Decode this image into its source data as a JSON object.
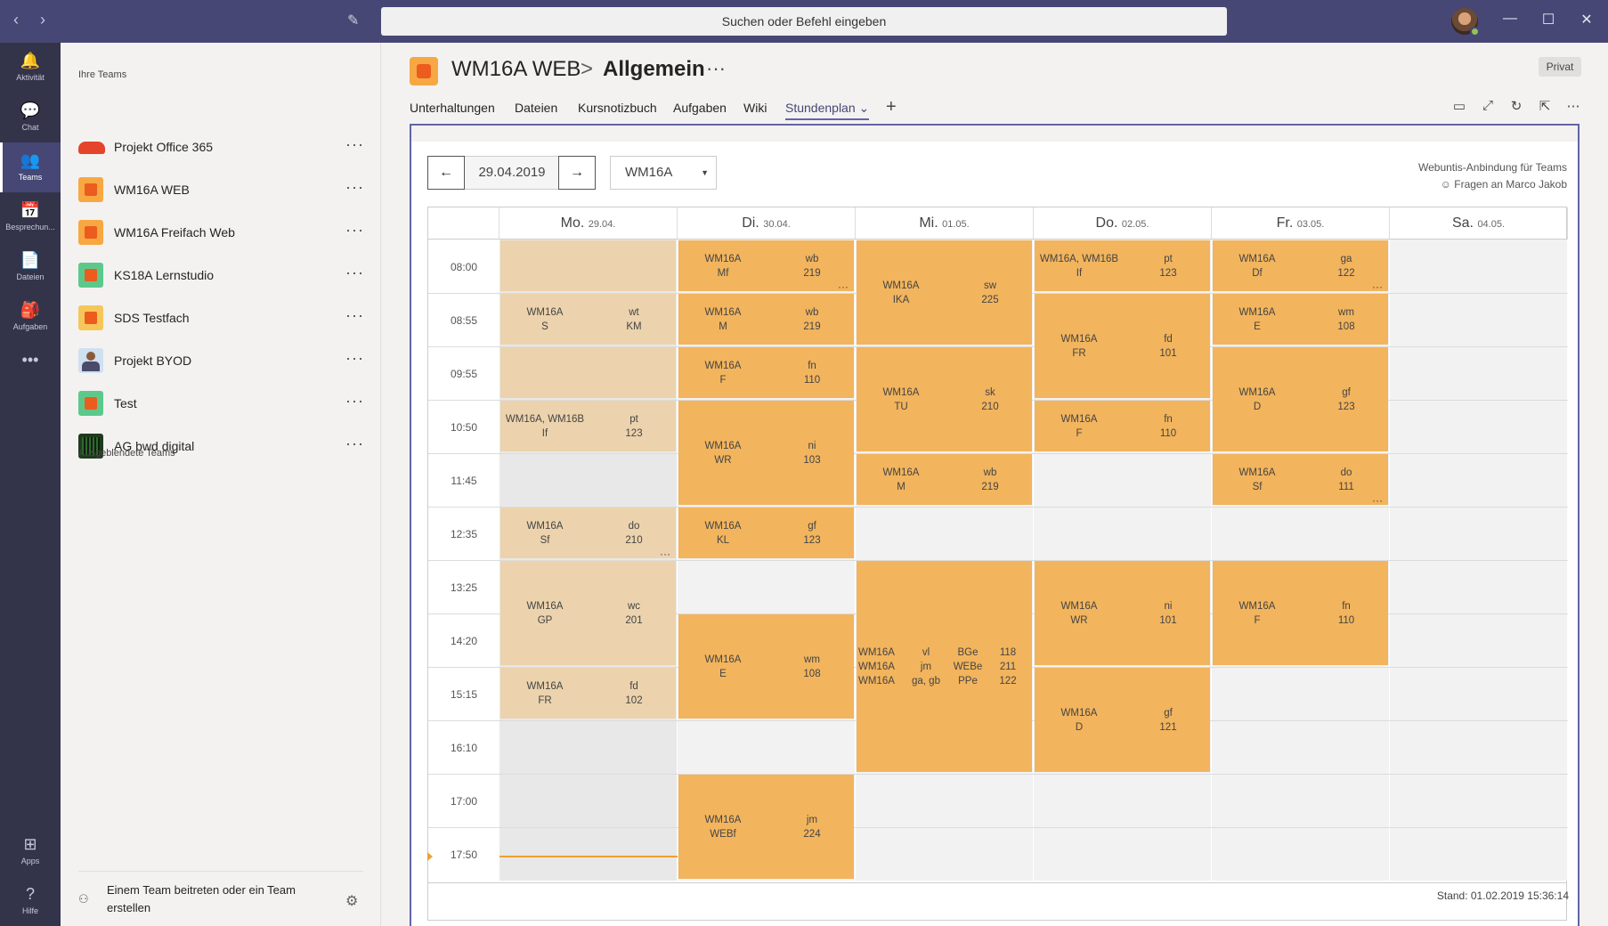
{
  "titlebar": {
    "search_placeholder": "Suchen oder Befehl eingeben",
    "back": "‹",
    "forward": "›",
    "compose": "✎",
    "minimize": "—",
    "maximize": "☐",
    "close": "✕"
  },
  "rail": [
    {
      "label": "Aktivität",
      "icon": "🔔",
      "name": "rail-activity"
    },
    {
      "label": "Chat",
      "icon": "💬",
      "name": "rail-chat"
    },
    {
      "label": "Teams",
      "icon": "👥",
      "name": "rail-teams"
    },
    {
      "label": "Besprechun...",
      "icon": "📅",
      "name": "rail-meetings"
    },
    {
      "label": "Dateien",
      "icon": "📄",
      "name": "rail-files"
    },
    {
      "label": "Aufgaben",
      "icon": "🎒",
      "name": "rail-assignments"
    },
    {
      "label": "",
      "icon": "•••",
      "name": "rail-more"
    }
  ],
  "rail_bottom": [
    {
      "label": "Apps",
      "icon": "⊞",
      "name": "rail-apps"
    },
    {
      "label": "Hilfe",
      "icon": "?",
      "name": "rail-help"
    }
  ],
  "teams_panel": {
    "your_teams": "Ihre Teams",
    "hidden_teams": "Ausgeblendete Teams",
    "join": "Einem Team beitreten oder ein Team erstellen",
    "teams": [
      {
        "name": "Projekt Office 365",
        "icon_style": "office"
      },
      {
        "name": "WM16A WEB",
        "icon_style": "orange"
      },
      {
        "name": "WM16A Freifach Web",
        "icon_style": "orange"
      },
      {
        "name": "KS18A Lernstudio",
        "icon_style": "green"
      },
      {
        "name": "SDS Testfach",
        "icon_style": "yellow"
      },
      {
        "name": "Projekt BYOD",
        "icon_style": "person"
      },
      {
        "name": "Test",
        "icon_style": "green"
      },
      {
        "name": "AG bwd digital",
        "icon_style": "dark"
      }
    ]
  },
  "channel": {
    "team": "WM16A WEB",
    "separator": ">",
    "channel": "Allgemein",
    "more": "···",
    "privacy": "Privat",
    "tabs": [
      "Unterhaltungen",
      "Dateien",
      "Kursnotizbuch",
      "Aufgaben",
      "Wiki",
      "Stundenplan ⌄"
    ],
    "add_tab": "+"
  },
  "timetable": {
    "date": "29.04.2019",
    "prev": "←",
    "next": "→",
    "class": "WM16A",
    "webuntis_line1": "Webuntis-Anbindung für Teams",
    "webuntis_line2": "☺ Fragen an Marco Jakob",
    "stand": "Stand: 01.02.2019 15:36:14",
    "days": [
      {
        "name": "Mo.",
        "date": "29.04."
      },
      {
        "name": "Di.",
        "date": "30.04."
      },
      {
        "name": "Mi.",
        "date": "01.05."
      },
      {
        "name": "Do.",
        "date": "02.05."
      },
      {
        "name": "Fr.",
        "date": "03.05."
      },
      {
        "name": "Sa.",
        "date": "04.05."
      }
    ],
    "times": [
      "08:00",
      "08:55",
      "09:55",
      "10:50",
      "11:45",
      "12:35",
      "13:25",
      "14:20",
      "15:15",
      "16:10",
      "17:00",
      "17:50"
    ],
    "lessons": [
      {
        "day": 0,
        "start": 0,
        "span": 1,
        "cells": [],
        "style": "light"
      },
      {
        "day": 0,
        "start": 1,
        "span": 1,
        "cells": [
          "WM16A\nS",
          "wt\nKM"
        ],
        "style": "light"
      },
      {
        "day": 0,
        "start": 2,
        "span": 1,
        "cells": [],
        "style": "light"
      },
      {
        "day": 0,
        "start": 3,
        "span": 1,
        "cells": [
          "WM16A, WM16B\nIf",
          "pt\n123"
        ],
        "style": "light"
      },
      {
        "day": 0,
        "start": 5,
        "span": 1,
        "cells": [
          "WM16A\nSf",
          "do\n210"
        ],
        "style": "light",
        "dots": true
      },
      {
        "day": 0,
        "start": 6,
        "span": 2,
        "cells": [
          "WM16A\nGP",
          "wc\n201"
        ],
        "style": "light"
      },
      {
        "day": 0,
        "start": 8,
        "span": 1,
        "cells": [
          "WM16A\nFR",
          "fd\n102"
        ],
        "style": "light"
      },
      {
        "day": 1,
        "start": 0,
        "span": 1,
        "cells": [
          "WM16A\nMf",
          "wb\n219"
        ],
        "style": "orange",
        "dots": true
      },
      {
        "day": 1,
        "start": 1,
        "span": 1,
        "cells": [
          "WM16A\nM",
          "wb\n219"
        ],
        "style": "orange"
      },
      {
        "day": 1,
        "start": 2,
        "span": 1,
        "cells": [
          "WM16A\nF",
          "fn\n110"
        ],
        "style": "orange"
      },
      {
        "day": 1,
        "start": 3,
        "span": 2,
        "cells": [
          "WM16A\nWR",
          "ni\n103"
        ],
        "style": "orange"
      },
      {
        "day": 1,
        "start": 5,
        "span": 1,
        "cells": [
          "WM16A\nKL",
          "gf\n123"
        ],
        "style": "orange"
      },
      {
        "day": 1,
        "start": 7,
        "span": 2,
        "cells": [
          "WM16A\nE",
          "wm\n108"
        ],
        "style": "orange"
      },
      {
        "day": 1,
        "start": 10,
        "span": 2,
        "cells": [
          "WM16A\nWEBf",
          "jm\n224"
        ],
        "style": "orange"
      },
      {
        "day": 2,
        "start": 0,
        "span": 2,
        "cells": [
          "WM16A\nIKA",
          "sw\n225"
        ],
        "style": "orange"
      },
      {
        "day": 2,
        "start": 2,
        "span": 2,
        "cells": [
          "WM16A\nTU",
          "sk\n210"
        ],
        "style": "orange"
      },
      {
        "day": 2,
        "start": 4,
        "span": 1,
        "cells": [
          "WM16A\nM",
          "wb\n219"
        ],
        "style": "orange"
      },
      {
        "day": 2,
        "start": 6,
        "span": 4,
        "cells": [
          "WM16A\nWM16A\nWM16A",
          "vl\njm\nga, gb",
          "BGe\nWEBe\nPPe",
          "118\n211\n122"
        ],
        "style": "orange",
        "multi": true
      },
      {
        "day": 3,
        "start": 0,
        "span": 1,
        "cells": [
          "WM16A, WM16B\nIf",
          "pt\n123"
        ],
        "style": "orange"
      },
      {
        "day": 3,
        "start": 1,
        "span": 2,
        "cells": [
          "WM16A\nFR",
          "fd\n101"
        ],
        "style": "orange"
      },
      {
        "day": 3,
        "start": 3,
        "span": 1,
        "cells": [
          "WM16A\nF",
          "fn\n110"
        ],
        "style": "orange"
      },
      {
        "day": 3,
        "start": 6,
        "span": 2,
        "cells": [
          "WM16A\nWR",
          "ni\n101"
        ],
        "style": "orange"
      },
      {
        "day": 3,
        "start": 8,
        "span": 2,
        "cells": [
          "WM16A\nD",
          "gf\n121"
        ],
        "style": "orange"
      },
      {
        "day": 4,
        "start": 0,
        "span": 1,
        "cells": [
          "WM16A\nDf",
          "ga\n122"
        ],
        "style": "orange",
        "dots": true
      },
      {
        "day": 4,
        "start": 1,
        "span": 1,
        "cells": [
          "WM16A\nE",
          "wm\n108"
        ],
        "style": "orange"
      },
      {
        "day": 4,
        "start": 2,
        "span": 2,
        "cells": [
          "WM16A\nD",
          "gf\n123"
        ],
        "style": "orange"
      },
      {
        "day": 4,
        "start": 4,
        "span": 1,
        "cells": [
          "WM16A\nSf",
          "do\n111"
        ],
        "style": "orange",
        "dots": true
      },
      {
        "day": 4,
        "start": 6,
        "span": 2,
        "cells": [
          "WM16A\nF",
          "fn\n110"
        ],
        "style": "orange"
      }
    ]
  },
  "colors": {
    "lesson_orange": "#f2b45d",
    "lesson_light": "#ecd3ad",
    "past_gray": "#e8e8e8",
    "empty_gray": "#f2f2f2",
    "accent": "#6264a7"
  }
}
